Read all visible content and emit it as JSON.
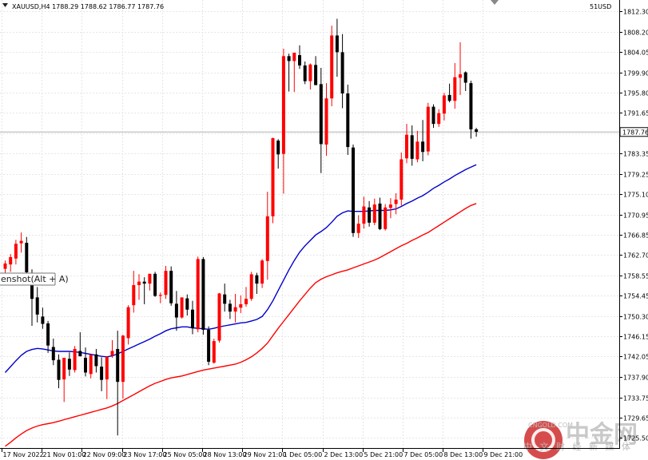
{
  "header": {
    "symbol_ohlc": "XAUUSD,H4  1788.29 1788.62 1786.77 1787.76",
    "account": "51USD"
  },
  "tooltip": "enshot(Alt + A)",
  "watermark": {
    "brand_cn": "中金网",
    "slogan_cn": "中 文 财 经 新 媒 体",
    "url": "CNGOLD.COM"
  },
  "current_price_label": "1787.76",
  "chart_data": {
    "type": "candlestick",
    "symbol": "XAUUSD",
    "timeframe": "H4",
    "ylim": [
      1723.6,
      1814.5
    ],
    "price_ticks": [
      "1812.30",
      "1808.20",
      "1804.05",
      "1799.90",
      "1795.80",
      "1791.65",
      "1787.55",
      "1783.35",
      "1779.25",
      "1775.10",
      "1770.95",
      "1766.85",
      "1762.70",
      "1758.55",
      "1754.45",
      "1750.30",
      "1746.15",
      "1742.05",
      "1737.90",
      "1733.75",
      "1729.65",
      "1725.50"
    ],
    "time_ticks": [
      "17 Nov 2022",
      "21 Nov 01:00",
      "22 Nov 09:00",
      "23 Nov 17:00",
      "25 Nov 05:00",
      "28 Nov 13:00",
      "29 Nov 21:00",
      "1 Dec 05:00",
      "2 Dec 13:00",
      "5 Dec 21:00",
      "7 Dec 05:00",
      "8 Dec 13:00",
      "9 Dec 21:00"
    ],
    "current_price": 1787.76,
    "colors": {
      "bull": "#ff0000",
      "bear": "#000000",
      "ma_fast": "#0000cc",
      "ma_slow": "#ff0000",
      "price_line": "#b0b0b0",
      "grid": "#e6e6e6"
    },
    "candles": [
      [
        1759.9,
        1761.6,
        1758.5,
        1761.0
      ],
      [
        1760.8,
        1762.9,
        1759.3,
        1762.3
      ],
      [
        1762.0,
        1765.8,
        1760.8,
        1765.0
      ],
      [
        1765.1,
        1767.3,
        1763.2,
        1765.6
      ],
      [
        1765.2,
        1766.4,
        1758.0,
        1759.2
      ],
      [
        1759.0,
        1759.8,
        1748.3,
        1753.8
      ],
      [
        1754.1,
        1756.2,
        1749.0,
        1750.6
      ],
      [
        1750.2,
        1752.0,
        1747.7,
        1748.7
      ],
      [
        1748.8,
        1749.3,
        1742.8,
        1744.3
      ],
      [
        1744.0,
        1745.7,
        1740.3,
        1741.3
      ],
      [
        1741.4,
        1742.5,
        1735.6,
        1737.3
      ],
      [
        1737.4,
        1741.3,
        1732.8,
        1741.8
      ],
      [
        1741.6,
        1742.9,
        1738.1,
        1739.4
      ],
      [
        1739.3,
        1744.2,
        1738.8,
        1743.6
      ],
      [
        1743.2,
        1747.0,
        1742.9,
        1742.1
      ],
      [
        1741.8,
        1743.9,
        1738.0,
        1738.8
      ],
      [
        1738.5,
        1742.4,
        1737.6,
        1742.4
      ],
      [
        1742.5,
        1743.6,
        1738.8,
        1740.1
      ],
      [
        1740.0,
        1741.9,
        1735.0,
        1737.3
      ],
      [
        1737.4,
        1742.1,
        1733.4,
        1742.0
      ],
      [
        1742.3,
        1745.4,
        1741.8,
        1743.2
      ],
      [
        1743.6,
        1747.3,
        1726.0,
        1736.9
      ],
      [
        1736.9,
        1746.5,
        1733.5,
        1746.3
      ],
      [
        1745.8,
        1752.5,
        1744.5,
        1752.1
      ],
      [
        1752.5,
        1759.5,
        1751.0,
        1756.6
      ],
      [
        1756.6,
        1758.8,
        1753.6,
        1757.3
      ],
      [
        1757.3,
        1758.2,
        1752.7,
        1756.9
      ],
      [
        1756.9,
        1758.9,
        1755.5,
        1758.9
      ],
      [
        1758.9,
        1759.3,
        1754.2,
        1754.4
      ],
      [
        1754.4,
        1755.1,
        1752.9,
        1754.6
      ],
      [
        1754.6,
        1760.5,
        1753.8,
        1759.5
      ],
      [
        1759.5,
        1760.4,
        1752.4,
        1752.9
      ],
      [
        1752.8,
        1755.4,
        1747.3,
        1750.0
      ],
      [
        1750.0,
        1754.0,
        1749.8,
        1754.1
      ],
      [
        1753.9,
        1754.7,
        1750.4,
        1751.6
      ],
      [
        1751.6,
        1753.4,
        1746.6,
        1747.8
      ],
      [
        1747.6,
        1762.4,
        1747.0,
        1761.9
      ],
      [
        1761.9,
        1762.3,
        1746.5,
        1747.5
      ],
      [
        1747.5,
        1748.2,
        1740.3,
        1741.0
      ],
      [
        1740.8,
        1745.7,
        1740.6,
        1745.2
      ],
      [
        1745.3,
        1755.0,
        1744.9,
        1754.9
      ],
      [
        1754.7,
        1756.9,
        1751.2,
        1752.8
      ],
      [
        1752.8,
        1753.6,
        1749.7,
        1751.2
      ],
      [
        1751.2,
        1754.8,
        1749.0,
        1752.1
      ],
      [
        1752.0,
        1754.5,
        1750.9,
        1752.7
      ],
      [
        1752.7,
        1756.2,
        1752.2,
        1753.8
      ],
      [
        1753.8,
        1759.3,
        1753.4,
        1758.8
      ],
      [
        1758.6,
        1759.1,
        1754.8,
        1756.9
      ],
      [
        1756.9,
        1761.9,
        1756.0,
        1761.6
      ],
      [
        1761.5,
        1775.6,
        1757.7,
        1770.6
      ],
      [
        1770.6,
        1786.6,
        1769.2,
        1786.5
      ],
      [
        1786.0,
        1786.3,
        1780.3,
        1783.2
      ],
      [
        1783.3,
        1804.7,
        1775.2,
        1803.2
      ],
      [
        1803.2,
        1803.7,
        1796.0,
        1802.2
      ],
      [
        1802.2,
        1803.5,
        1795.9,
        1803.9
      ],
      [
        1803.4,
        1805.4,
        1800.6,
        1801.3
      ],
      [
        1801.3,
        1802.1,
        1797.5,
        1798.1
      ],
      [
        1798.1,
        1801.7,
        1796.4,
        1801.5
      ],
      [
        1801.4,
        1803.2,
        1797.4,
        1797.3
      ],
      [
        1797.5,
        1800.8,
        1779.4,
        1785.3
      ],
      [
        1785.2,
        1797.7,
        1782.9,
        1794.6
      ],
      [
        1794.6,
        1809.4,
        1793.0,
        1807.4
      ],
      [
        1807.4,
        1810.8,
        1799.0,
        1804.0
      ],
      [
        1804.0,
        1807.7,
        1792.6,
        1795.6
      ],
      [
        1795.6,
        1797.4,
        1783.1,
        1784.7
      ],
      [
        1784.6,
        1785.2,
        1766.4,
        1767.2
      ],
      [
        1767.2,
        1770.8,
        1766.2,
        1769.1
      ],
      [
        1769.1,
        1774.6,
        1768.1,
        1772.6
      ],
      [
        1772.4,
        1773.7,
        1768.5,
        1769.3
      ],
      [
        1769.3,
        1774.2,
        1768.8,
        1773.0
      ],
      [
        1773.2,
        1774.4,
        1767.8,
        1768.0
      ],
      [
        1768.0,
        1773.1,
        1767.7,
        1772.4
      ],
      [
        1772.3,
        1774.3,
        1770.2,
        1773.0
      ],
      [
        1773.1,
        1775.3,
        1771.0,
        1774.0
      ],
      [
        1774.0,
        1783.6,
        1772.8,
        1782.2
      ],
      [
        1782.4,
        1789.4,
        1781.4,
        1787.2
      ],
      [
        1787.1,
        1789.1,
        1780.9,
        1782.3
      ],
      [
        1782.2,
        1788.0,
        1781.6,
        1785.8
      ],
      [
        1785.8,
        1790.2,
        1781.8,
        1783.7
      ],
      [
        1783.8,
        1793.7,
        1783.0,
        1792.9
      ],
      [
        1792.9,
        1793.4,
        1788.6,
        1789.4
      ],
      [
        1789.4,
        1792.4,
        1788.8,
        1791.6
      ],
      [
        1791.5,
        1795.7,
        1790.1,
        1795.2
      ],
      [
        1795.3,
        1797.6,
        1793.8,
        1794.1
      ],
      [
        1794.1,
        1801.8,
        1792.5,
        1798.9
      ],
      [
        1798.8,
        1806.0,
        1795.3,
        1799.5
      ],
      [
        1799.9,
        1800.1,
        1796.1,
        1797.8
      ],
      [
        1797.7,
        1798.2,
        1786.4,
        1788.3
      ],
      [
        1788.3,
        1788.6,
        1786.8,
        1787.8
      ]
    ],
    "ma_fast": [
      1738.8,
      1740.0,
      1741.2,
      1742.3,
      1743.1,
      1743.5,
      1743.7,
      1743.6,
      1743.4,
      1743.2,
      1743.1,
      1743.1,
      1743.1,
      1743.0,
      1742.9,
      1742.7,
      1742.5,
      1742.3,
      1742.1,
      1742.0,
      1742.2,
      1742.6,
      1743.1,
      1743.6,
      1744.1,
      1744.6,
      1745.1,
      1745.6,
      1746.2,
      1746.7,
      1747.3,
      1747.7,
      1747.9,
      1748.1,
      1748.1,
      1747.9,
      1747.8,
      1747.7,
      1747.6,
      1747.8,
      1748.1,
      1748.3,
      1748.5,
      1748.7,
      1748.9,
      1749.0,
      1749.3,
      1749.6,
      1750.2,
      1751.6,
      1753.4,
      1755.5,
      1757.6,
      1759.7,
      1761.6,
      1763.3,
      1764.6,
      1765.7,
      1766.8,
      1767.5,
      1768.3,
      1769.4,
      1770.6,
      1771.3,
      1771.7,
      1771.6,
      1771.6,
      1771.6,
      1771.7,
      1771.8,
      1771.8,
      1771.8,
      1771.9,
      1772.1,
      1772.6,
      1773.2,
      1773.7,
      1774.3,
      1774.8,
      1775.5,
      1776.3,
      1776.9,
      1777.6,
      1778.2,
      1778.9,
      1779.5,
      1780.1,
      1780.6,
      1781.1
    ],
    "ma_slow": [
      1723.8,
      1724.6,
      1725.5,
      1726.3,
      1727.0,
      1727.5,
      1727.9,
      1728.2,
      1728.4,
      1728.6,
      1728.9,
      1729.2,
      1729.5,
      1729.8,
      1730.1,
      1730.4,
      1730.7,
      1731.0,
      1731.3,
      1731.6,
      1732.0,
      1732.5,
      1733.1,
      1733.7,
      1734.3,
      1734.9,
      1735.5,
      1736.1,
      1736.6,
      1737.0,
      1737.4,
      1737.7,
      1737.9,
      1738.1,
      1738.4,
      1738.7,
      1739.0,
      1739.3,
      1739.5,
      1739.7,
      1739.9,
      1740.1,
      1740.3,
      1740.5,
      1740.9,
      1741.4,
      1742.0,
      1742.8,
      1743.7,
      1744.8,
      1746.3,
      1747.8,
      1749.2,
      1750.6,
      1752.0,
      1753.4,
      1754.7,
      1756.0,
      1757.1,
      1757.8,
      1758.3,
      1758.7,
      1759.1,
      1759.4,
      1759.7,
      1760.1,
      1760.5,
      1760.9,
      1761.3,
      1761.7,
      1762.2,
      1762.8,
      1763.4,
      1764.0,
      1764.6,
      1765.1,
      1765.7,
      1766.2,
      1766.8,
      1767.3,
      1768.0,
      1768.7,
      1769.4,
      1770.1,
      1770.8,
      1771.5,
      1772.2,
      1772.8,
      1773.2
    ]
  }
}
